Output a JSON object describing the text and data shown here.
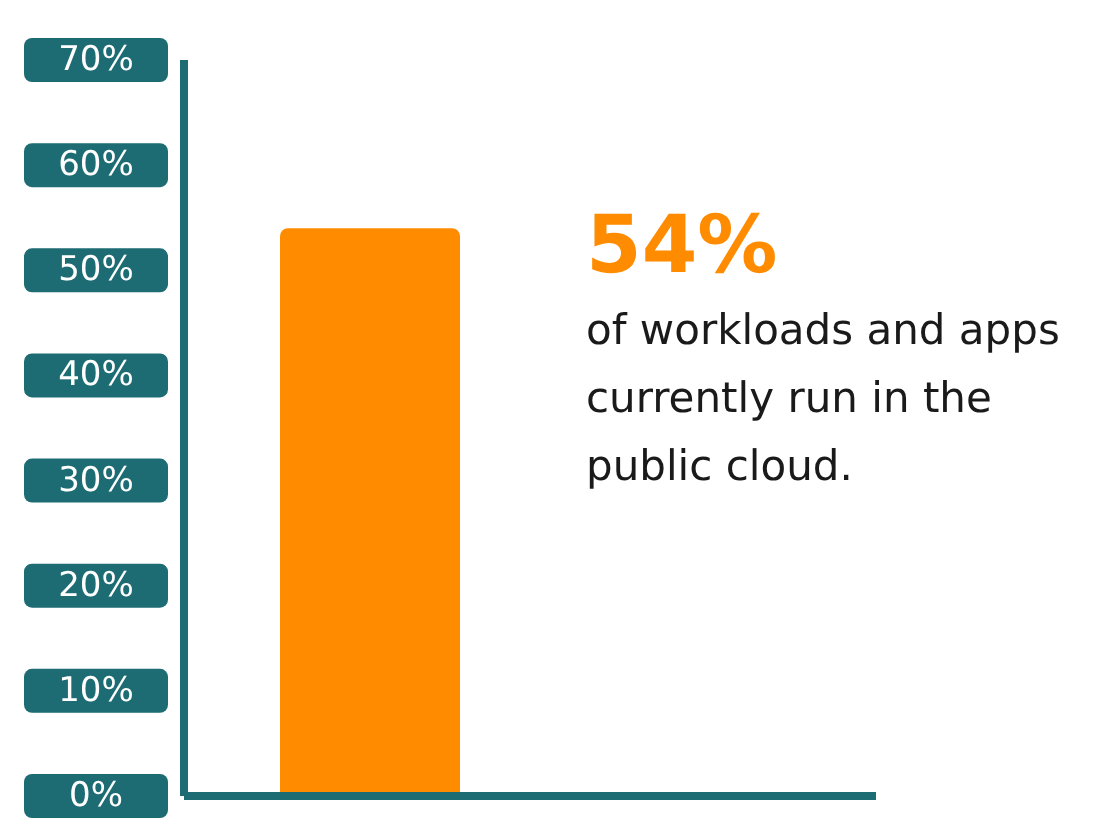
{
  "chart_data": {
    "type": "bar",
    "categories": [
      null
    ],
    "values": [
      54
    ],
    "color": "#ff8c00",
    "ylim": [
      0,
      70
    ],
    "yticks": [
      {
        "value": 0,
        "label": "0%"
      },
      {
        "value": 10,
        "label": "10%"
      },
      {
        "value": 20,
        "label": "20%"
      },
      {
        "value": 30,
        "label": "30%"
      },
      {
        "value": 40,
        "label": "40%"
      },
      {
        "value": 50,
        "label": "50%"
      },
      {
        "value": 60,
        "label": "60%"
      },
      {
        "value": 70,
        "label": "70%"
      }
    ],
    "grid": false,
    "legend": false,
    "annotations": [
      "54%",
      "of workloads and apps currently run in the public cloud."
    ]
  }
}
